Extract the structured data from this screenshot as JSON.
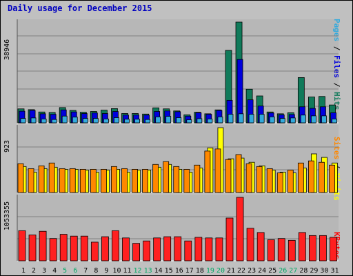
{
  "title": "Daily usage for December 2015",
  "legends": {
    "top": [
      {
        "text": "Pages",
        "color": "#33aadd"
      },
      {
        "text": " / ",
        "color": "#000000"
      },
      {
        "text": "Files",
        "color": "#0000dd"
      },
      {
        "text": " / ",
        "color": "#000000"
      },
      {
        "text": "Hits",
        "color": "#107a5a"
      }
    ],
    "middle": [
      {
        "text": "Sites",
        "color": "#ff8800"
      },
      {
        "text": " / ",
        "color": "#000000"
      },
      {
        "text": "Visits",
        "color": "#ffff00"
      }
    ],
    "bottom": [
      {
        "text": "KBytes",
        "color": "#ff0000"
      }
    ]
  },
  "chart_data": [
    {
      "type": "bar",
      "ymax_label": "38946",
      "ylim": [
        0,
        38946
      ],
      "categories": [
        "1",
        "2",
        "3",
        "4",
        "5",
        "6",
        "7",
        "8",
        "9",
        "10",
        "11",
        "12",
        "13",
        "14",
        "15",
        "16",
        "17",
        "18",
        "19",
        "20",
        "21",
        "22",
        "23",
        "24",
        "25",
        "26",
        "27",
        "28",
        "29",
        "30",
        "31"
      ],
      "weekend_days": [
        "5",
        "6",
        "12",
        "13",
        "19",
        "20",
        "26",
        "27"
      ],
      "series": [
        {
          "name": "Hits",
          "color": "#107a5a",
          "values": [
            5400,
            5100,
            4200,
            4000,
            5900,
            4800,
            4100,
            4400,
            4900,
            5500,
            3600,
            3600,
            3400,
            5800,
            5400,
            4600,
            3100,
            4100,
            3500,
            5000,
            28000,
            38946,
            13000,
            10400,
            4200,
            3500,
            3900,
            17500,
            10000,
            10200,
            6900
          ]
        },
        {
          "name": "Files",
          "color": "#0000dd",
          "values": [
            4500,
            4800,
            3500,
            3300,
            5000,
            4200,
            3600,
            3800,
            3600,
            4400,
            3000,
            3000,
            3000,
            4400,
            4600,
            4300,
            2600,
            3900,
            3300,
            4800,
            8700,
            24500,
            8900,
            6500,
            3800,
            3100,
            3200,
            6200,
            5600,
            6200,
            3900
          ]
        },
        {
          "name": "Pages",
          "color": "#33aadd",
          "values": [
            1700,
            1900,
            1500,
            1300,
            2600,
            2200,
            1700,
            1700,
            1500,
            2000,
            1400,
            1400,
            1300,
            2300,
            2500,
            2000,
            1200,
            1600,
            1500,
            2300,
            3300,
            3500,
            3300,
            3300,
            2300,
            1700,
            1900,
            3000,
            2700,
            2700,
            1500
          ]
        }
      ]
    },
    {
      "type": "bar",
      "ymax_label": "923",
      "ylim": [
        0,
        923
      ],
      "categories": [
        "1",
        "2",
        "3",
        "4",
        "5",
        "6",
        "7",
        "8",
        "9",
        "10",
        "11",
        "12",
        "13",
        "14",
        "15",
        "16",
        "17",
        "18",
        "19",
        "20",
        "21",
        "22",
        "23",
        "24",
        "25",
        "26",
        "27",
        "28",
        "29",
        "30",
        "31"
      ],
      "series": [
        {
          "name": "Visits",
          "color": "#ffff00",
          "values": [
            370,
            290,
            340,
            360,
            330,
            330,
            320,
            290,
            320,
            330,
            290,
            320,
            320,
            360,
            400,
            330,
            290,
            350,
            635,
            923,
            480,
            490,
            430,
            380,
            320,
            290,
            280,
            350,
            550,
            500,
            420
          ]
        },
        {
          "name": "Sites",
          "color": "#ff8800",
          "values": [
            410,
            340,
            380,
            420,
            340,
            340,
            330,
            330,
            330,
            370,
            340,
            330,
            330,
            400,
            440,
            370,
            330,
            390,
            590,
            620,
            470,
            540,
            410,
            370,
            340,
            280,
            320,
            420,
            450,
            430,
            390
          ]
        }
      ]
    },
    {
      "type": "bar",
      "ymax_label": "1053355",
      "ylim": [
        0,
        1053355
      ],
      "categories": [
        "1",
        "2",
        "3",
        "4",
        "5",
        "6",
        "7",
        "8",
        "9",
        "10",
        "11",
        "12",
        "13",
        "14",
        "15",
        "16",
        "17",
        "18",
        "19",
        "20",
        "21",
        "22",
        "23",
        "24",
        "25",
        "26",
        "27",
        "28",
        "29",
        "30",
        "31"
      ],
      "series": [
        {
          "name": "KBytes",
          "color": "#ff2020",
          "values": [
            500000,
            430000,
            490000,
            370000,
            440000,
            410000,
            410000,
            310000,
            400000,
            500000,
            380000,
            290000,
            330000,
            380000,
            400000,
            400000,
            330000,
            390000,
            380000,
            380000,
            710000,
            1053355,
            540000,
            470000,
            350000,
            370000,
            340000,
            470000,
            420000,
            420000,
            390000
          ]
        }
      ]
    }
  ]
}
